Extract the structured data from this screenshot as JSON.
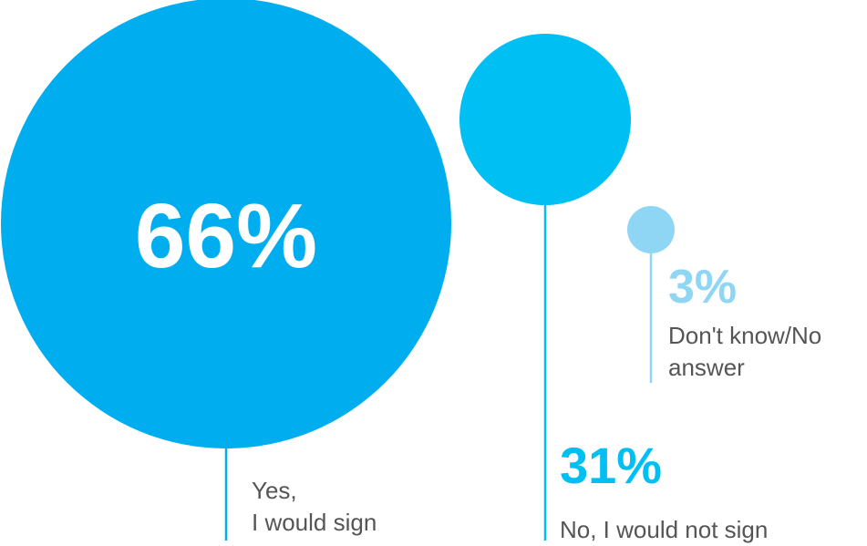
{
  "chart_data": {
    "type": "bubble",
    "title": "",
    "items": [
      {
        "category": "Yes, I would sign",
        "label_lines": [
          "Yes,",
          "I would sign"
        ],
        "percent_label": "66%",
        "value": 66,
        "color": "#00aeef"
      },
      {
        "category": "No, I would not sign",
        "label_lines": [
          "No, I would not sign"
        ],
        "percent_label": "31%",
        "value": 31,
        "color": "#00bff3"
      },
      {
        "category": "Don't know/No answer",
        "label_lines": [
          "Don't know/No",
          "answer"
        ],
        "percent_label": "3%",
        "value": 3,
        "color": "#8fd6f5"
      }
    ]
  }
}
